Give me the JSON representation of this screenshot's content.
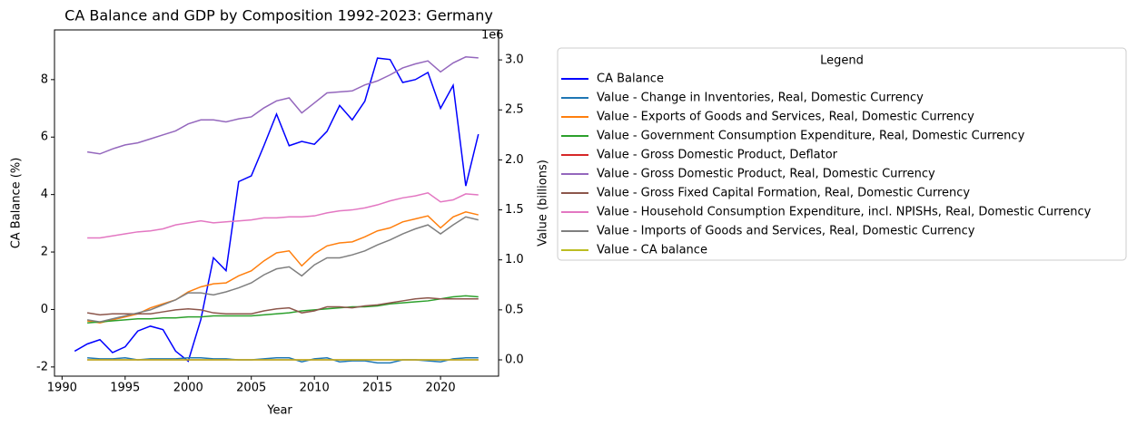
{
  "chart_data": {
    "type": "line",
    "title": "CA Balance and GDP by Composition 1992-2023: Germany",
    "xlabel": "Year",
    "ylabel": "CA Balance (%)",
    "y2label": "Value (billions)",
    "y2offset": "1e6",
    "x": [
      1991,
      1992,
      1993,
      1994,
      1995,
      1996,
      1997,
      1998,
      1999,
      2000,
      2001,
      2002,
      2003,
      2004,
      2005,
      2006,
      2007,
      2008,
      2009,
      2010,
      2011,
      2012,
      2013,
      2014,
      2015,
      2016,
      2017,
      2018,
      2019,
      2020,
      2021,
      2022,
      2023
    ],
    "xlim": [
      1989.4,
      2024.6
    ],
    "xticks": [
      1990,
      1995,
      2000,
      2005,
      2010,
      2015,
      2020
    ],
    "ylim": [
      -2.32,
      9.73
    ],
    "yticks": [
      -2,
      0,
      2,
      4,
      6,
      8
    ],
    "y2lim": [
      -0.163,
      3.3
    ],
    "y2ticks": [
      {
        "value": 0,
        "label": "0.0"
      },
      {
        "value": 0.5,
        "label": "0.5"
      },
      {
        "value": 1,
        "label": "1.0"
      },
      {
        "value": 1.5,
        "label": "1.5"
      },
      {
        "value": 2,
        "label": "2.0"
      },
      {
        "value": 2.5,
        "label": "2.5"
      },
      {
        "value": 3,
        "label": "3.0"
      }
    ],
    "legend_title": "Legend",
    "legend_loc": "right",
    "series": [
      {
        "name": "CA Balance",
        "color": "#0000ff",
        "axis": "y",
        "values": [
          -1.45,
          -1.2,
          -1.05,
          -1.5,
          -1.3,
          -0.75,
          -0.58,
          -0.7,
          -1.45,
          -1.8,
          -0.35,
          1.8,
          1.35,
          4.45,
          4.65,
          5.7,
          6.8,
          5.7,
          5.85,
          5.75,
          6.2,
          7.1,
          6.6,
          7.25,
          8.75,
          8.7,
          7.9,
          8.0,
          8.25,
          7.0,
          7.8,
          4.3,
          6.1
        ]
      },
      {
        "name": "Value - Change in Inventories, Real, Domestic Currency",
        "color": "#1f77b4",
        "axis": "y2",
        "values": [
          null,
          0.02,
          0.01,
          0.01,
          0.02,
          0.0,
          0.01,
          0.01,
          0.01,
          0.02,
          0.02,
          0.01,
          0.01,
          0.0,
          0.0,
          0.01,
          0.02,
          0.02,
          -0.02,
          0.01,
          0.02,
          -0.02,
          -0.01,
          -0.01,
          -0.03,
          -0.03,
          0.0,
          0.0,
          -0.01,
          -0.02,
          0.01,
          0.02,
          0.02
        ]
      },
      {
        "name": "Value - Exports of Goods and Services, Real, Domestic Currency",
        "color": "#ff7f0e",
        "axis": "y2",
        "values": [
          null,
          0.39,
          0.37,
          0.4,
          0.43,
          0.46,
          0.52,
          0.56,
          0.6,
          0.68,
          0.73,
          0.76,
          0.77,
          0.84,
          0.89,
          0.99,
          1.07,
          1.09,
          0.94,
          1.06,
          1.14,
          1.17,
          1.18,
          1.23,
          1.29,
          1.32,
          1.38,
          1.41,
          1.44,
          1.32,
          1.43,
          1.48,
          1.45
        ]
      },
      {
        "name": "Value - Government Consumption Expenditure, Real, Domestic Currency",
        "color": "#2ca02c",
        "axis": "y2",
        "values": [
          null,
          0.37,
          0.38,
          0.39,
          0.4,
          0.41,
          0.41,
          0.42,
          0.42,
          0.43,
          0.43,
          0.44,
          0.44,
          0.44,
          0.44,
          0.45,
          0.46,
          0.47,
          0.49,
          0.5,
          0.51,
          0.52,
          0.53,
          0.53,
          0.54,
          0.56,
          0.57,
          0.58,
          0.59,
          0.61,
          0.63,
          0.64,
          0.63
        ]
      },
      {
        "name": "Value - Gross Domestic Product, Deflator",
        "color": "#d62728",
        "axis": "y2",
        "values": [
          null,
          0.0001,
          0.0001,
          0.0001,
          0.0001,
          0.0001,
          0.0001,
          0.0001,
          0.0001,
          0.0001,
          0.0001,
          0.0001,
          0.0001,
          0.0001,
          0.0001,
          0.0001,
          0.0001,
          0.0001,
          0.0001,
          0.0001,
          0.0001,
          0.0001,
          0.0001,
          0.0001,
          0.0001,
          0.0001,
          0.0001,
          0.0001,
          0.0001,
          0.0001,
          0.0001,
          0.0001,
          0.0001
        ]
      },
      {
        "name": "Value - Gross Domestic Product, Real, Domestic Currency",
        "color": "#9467bd",
        "axis": "y2",
        "values": [
          null,
          2.08,
          2.06,
          2.11,
          2.15,
          2.17,
          2.21,
          2.25,
          2.29,
          2.36,
          2.4,
          2.4,
          2.38,
          2.41,
          2.43,
          2.52,
          2.59,
          2.62,
          2.47,
          2.57,
          2.67,
          2.68,
          2.69,
          2.75,
          2.79,
          2.85,
          2.92,
          2.96,
          2.99,
          2.88,
          2.97,
          3.03,
          3.02
        ]
      },
      {
        "name": "Value - Gross Fixed Capital Formation, Real, Domestic Currency",
        "color": "#8c564b",
        "axis": "y2",
        "values": [
          null,
          0.47,
          0.45,
          0.46,
          0.46,
          0.46,
          0.46,
          0.48,
          0.5,
          0.51,
          0.5,
          0.47,
          0.46,
          0.46,
          0.46,
          0.49,
          0.51,
          0.52,
          0.47,
          0.49,
          0.53,
          0.53,
          0.52,
          0.54,
          0.55,
          0.57,
          0.59,
          0.61,
          0.62,
          0.61,
          0.61,
          0.61,
          0.61
        ]
      },
      {
        "name": "Value - Household Consumption Expenditure, incl. NPISHs, Real, Domestic Currency",
        "color": "#e377c2",
        "axis": "y2",
        "values": [
          null,
          1.22,
          1.22,
          1.24,
          1.26,
          1.28,
          1.29,
          1.31,
          1.35,
          1.37,
          1.39,
          1.37,
          1.38,
          1.39,
          1.4,
          1.42,
          1.42,
          1.43,
          1.43,
          1.44,
          1.47,
          1.49,
          1.5,
          1.52,
          1.55,
          1.59,
          1.62,
          1.64,
          1.67,
          1.58,
          1.6,
          1.66,
          1.65
        ]
      },
      {
        "name": "Value - Imports of Goods and Services, Real, Domestic Currency",
        "color": "#7f7f7f",
        "axis": "y2",
        "values": [
          null,
          0.4,
          0.38,
          0.41,
          0.44,
          0.47,
          0.5,
          0.55,
          0.6,
          0.67,
          0.67,
          0.65,
          0.68,
          0.72,
          0.77,
          0.85,
          0.91,
          0.93,
          0.84,
          0.95,
          1.02,
          1.02,
          1.05,
          1.09,
          1.15,
          1.2,
          1.26,
          1.31,
          1.35,
          1.26,
          1.35,
          1.43,
          1.4
        ]
      },
      {
        "name": "Value - CA balance",
        "color": "#bcbd22",
        "axis": "y2",
        "values": [
          null,
          0,
          0,
          0,
          0,
          0,
          0,
          0,
          0,
          0,
          0,
          0,
          0,
          0,
          0,
          0,
          0,
          0,
          0,
          0,
          0,
          0,
          0,
          0,
          0,
          0,
          0,
          0,
          0,
          0,
          0,
          0,
          0
        ]
      }
    ]
  }
}
